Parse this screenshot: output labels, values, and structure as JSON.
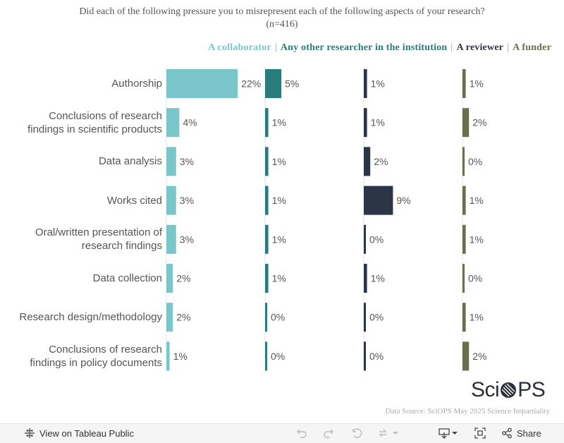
{
  "title_line1": "Did each of the following pressure you to misrepresent each of the following aspects of your research?",
  "title_line2": "(n=416)",
  "legend": [
    {
      "label": "A collaborator",
      "color": "#7ac6ca"
    },
    {
      "label": "Any other researcher in the institution",
      "color": "#2a7b7c"
    },
    {
      "label": "A reviewer",
      "color": "#2b3545"
    },
    {
      "label": "A funder",
      "color": "#6a6e4f"
    }
  ],
  "legend_separator": "|",
  "chart_data": {
    "type": "bar",
    "orientation": "horizontal",
    "layout": "small-multiples",
    "title": "Did each of the following pressure you to misrepresent each of the following aspects of your research? (n=416)",
    "categories": [
      "Authorship",
      "Conclusions of research findings in scientific products",
      "Data analysis",
      "Works cited",
      "Oral/written presentation of research findings",
      "Data collection",
      "Research design/methodology",
      "Conclusions of research findings in policy documents"
    ],
    "category_lines": [
      [
        "Authorship"
      ],
      [
        "Conclusions of research",
        "findings in scientific products"
      ],
      [
        "Data analysis"
      ],
      [
        "Works cited"
      ],
      [
        "Oral/written presentation of",
        "research findings"
      ],
      [
        "Data collection"
      ],
      [
        "Research design/methodology"
      ],
      [
        "Conclusions of research",
        "findings in policy documents"
      ]
    ],
    "series": [
      {
        "name": "A collaborator",
        "color": "#7ac6ca",
        "values": [
          22,
          4,
          3,
          3,
          3,
          2,
          2,
          1
        ]
      },
      {
        "name": "Any other researcher in the institution",
        "color": "#2a7b7c",
        "values": [
          5,
          1,
          1,
          1,
          1,
          1,
          0,
          0
        ]
      },
      {
        "name": "A reviewer",
        "color": "#2b3545",
        "values": [
          1,
          1,
          2,
          9,
          0,
          1,
          0,
          0
        ]
      },
      {
        "name": "A funder",
        "color": "#6a6e4f",
        "values": [
          1,
          2,
          0,
          1,
          1,
          0,
          1,
          2
        ]
      }
    ],
    "value_suffix": "%",
    "xlim": [
      0,
      30
    ]
  },
  "logo_text_left": "Sci",
  "logo_text_right": "PS",
  "source": "Data Source: SciOPS May 2025 Science Impartiality",
  "toolbar": {
    "view_label": "View on Tableau Public",
    "share_label": "Share"
  }
}
